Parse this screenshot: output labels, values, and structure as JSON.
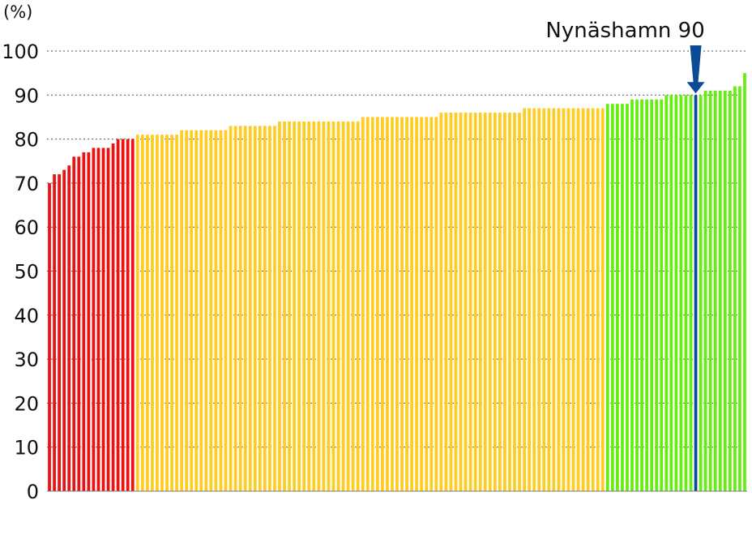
{
  "chart_data": {
    "type": "bar",
    "y_unit_label": "(%)",
    "ylim": [
      0,
      100
    ],
    "yticks": [
      0,
      10,
      20,
      30,
      40,
      50,
      60,
      70,
      80,
      90,
      100
    ],
    "grid": "horizontal dotted",
    "highlight": {
      "label": "Nynäshamn 90",
      "value": 90,
      "bar_color": "#0b4a94"
    },
    "colors": {
      "low": "#ee1111",
      "mid": "#ffcc22",
      "high": "#66ee11",
      "highlight": "#0b4a94",
      "arrow": "#0b4a94"
    },
    "bands": [
      {
        "name": "low",
        "values": [
          70,
          72,
          72,
          73,
          74,
          76,
          76,
          77,
          77,
          78,
          78,
          78,
          78,
          79,
          80,
          80,
          80,
          80
        ]
      },
      {
        "name": "mid",
        "values": [
          81,
          81,
          81,
          81,
          81,
          81,
          81,
          81,
          81,
          82,
          82,
          82,
          82,
          82,
          82,
          82,
          82,
          82,
          82,
          83,
          83,
          83,
          83,
          83,
          83,
          83,
          83,
          83,
          83,
          84,
          84,
          84,
          84,
          84,
          84,
          84,
          84,
          84,
          84,
          84,
          84,
          84,
          84,
          84,
          84,
          84,
          85,
          85,
          85,
          85,
          85,
          85,
          85,
          85,
          85,
          85,
          85,
          85,
          85,
          85,
          85,
          85,
          86,
          86,
          86,
          86,
          86,
          86,
          86,
          86,
          86,
          86,
          86,
          86,
          86,
          86,
          86,
          86,
          86,
          87,
          87,
          87,
          87,
          87,
          87,
          87,
          87,
          87,
          87,
          87,
          87,
          87,
          87,
          87,
          87,
          87
        ]
      },
      {
        "name": "high",
        "values": [
          88,
          88,
          88,
          88,
          88,
          89,
          89,
          89,
          89,
          89,
          89,
          89,
          90,
          90,
          90,
          90,
          90,
          90,
          90,
          90,
          91,
          91,
          91,
          91,
          91,
          91,
          92,
          92,
          95
        ]
      }
    ],
    "highlight_index": 132
  }
}
